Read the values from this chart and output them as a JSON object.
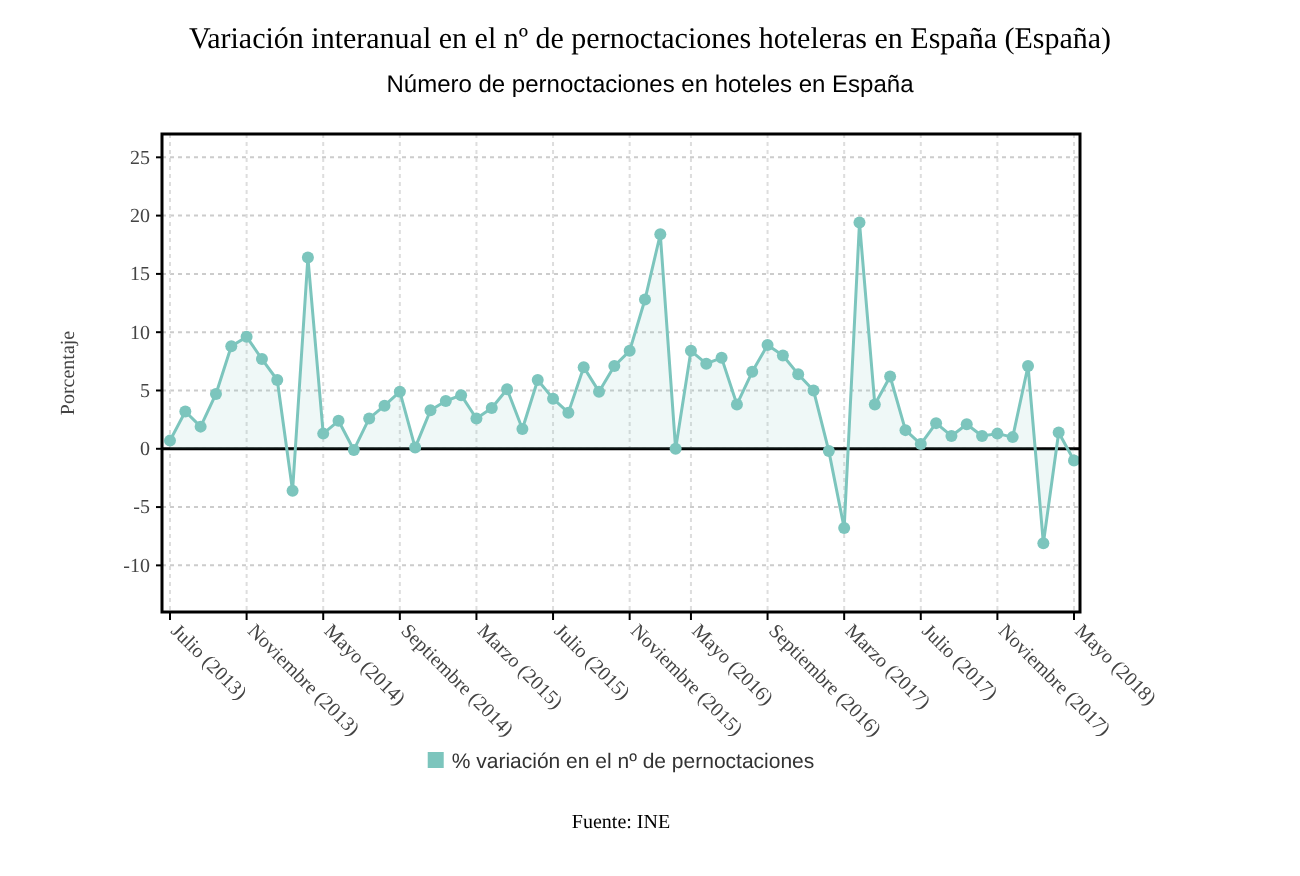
{
  "chart_data": {
    "type": "area",
    "title": "Variación interanual en el nº de pernoctaciones hoteleras en España (España)",
    "subtitle": "Número de pernoctaciones en hoteles en España",
    "ylabel": "Porcentaje",
    "categories": [
      "Julio (2013)",
      null,
      null,
      null,
      null,
      "Noviembre (2013)",
      null,
      null,
      null,
      null,
      "Mayo (2014)",
      null,
      null,
      null,
      null,
      "Septiembre (2014)",
      null,
      null,
      null,
      null,
      "Marzo (2015)",
      null,
      null,
      null,
      null,
      "Julio (2015)",
      null,
      null,
      null,
      null,
      "Noviembre (2015)",
      null,
      null,
      null,
      "Mayo (2016)",
      null,
      null,
      null,
      null,
      "Septiembre (2016)",
      null,
      null,
      null,
      null,
      "Marzo (2017)",
      null,
      null,
      null,
      null,
      "Julio (2017)",
      null,
      null,
      null,
      null,
      "Noviembre (2017)",
      null,
      null,
      null,
      null,
      "Mayo (2018)"
    ],
    "series": [
      {
        "name": "% variación en el nº de pernoctaciones",
        "color": "#7cc5bd",
        "values": [
          0.7,
          3.2,
          1.9,
          4.7,
          8.8,
          9.6,
          7.7,
          5.9,
          -3.6,
          16.4,
          1.3,
          2.4,
          -0.1,
          2.6,
          3.7,
          4.9,
          0.1,
          3.3,
          4.1,
          4.6,
          2.6,
          3.5,
          5.1,
          1.7,
          5.9,
          4.3,
          3.1,
          7.0,
          4.9,
          7.1,
          8.4,
          12.8,
          18.4,
          0.0,
          8.4,
          7.3,
          7.8,
          3.8,
          6.6,
          8.9,
          8.0,
          6.4,
          5.0,
          -0.2,
          -6.8,
          19.4,
          3.8,
          6.2,
          1.6,
          0.4,
          2.2,
          1.1,
          2.1,
          1.1,
          1.3,
          1.0,
          7.1,
          -8.1,
          1.4,
          -1.0
        ]
      }
    ],
    "ylim": [
      -14,
      27
    ],
    "yticks": [
      -10,
      -5,
      0,
      5,
      10,
      15,
      20,
      25
    ],
    "grid": true,
    "legend": "bottom",
    "marker": "circle",
    "ref_lines": [
      {
        "axis": "y",
        "value": 0,
        "color": "#000000"
      }
    ],
    "annotations": [
      "Fuente: INE"
    ]
  }
}
